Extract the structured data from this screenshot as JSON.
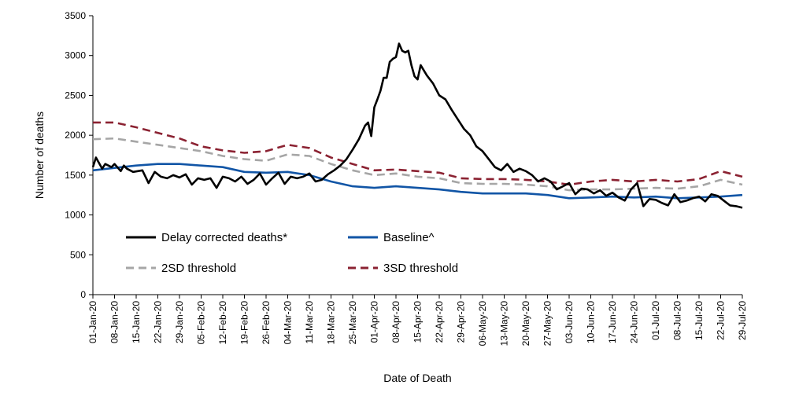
{
  "chart_data": {
    "type": "line",
    "title": "",
    "xlabel": "Date of Death",
    "ylabel": "Number of deaths",
    "ylim": [
      0,
      3500
    ],
    "yticks": [
      0,
      500,
      1000,
      1500,
      2000,
      2500,
      3000,
      3500
    ],
    "xlim": [
      "2020-01-01",
      "2020-07-29"
    ],
    "x_tick_dates": [
      "2020-01-01",
      "2020-01-08",
      "2020-01-15",
      "2020-01-22",
      "2020-01-29",
      "2020-02-05",
      "2020-02-12",
      "2020-02-19",
      "2020-02-26",
      "2020-03-04",
      "2020-03-11",
      "2020-03-18",
      "2020-03-25",
      "2020-04-01",
      "2020-04-08",
      "2020-04-15",
      "2020-04-22",
      "2020-04-29",
      "2020-05-06",
      "2020-05-13",
      "2020-05-20",
      "2020-05-27",
      "2020-06-03",
      "2020-06-10",
      "2020-06-17",
      "2020-06-24",
      "2020-07-01",
      "2020-07-08",
      "2020-07-15",
      "2020-07-22",
      "2020-07-29"
    ],
    "x_tick_labels": [
      "01-Jan-20",
      "08-Jan-20",
      "15-Jan-20",
      "22-Jan-20",
      "29-Jan-20",
      "05-Feb-20",
      "12-Feb-20",
      "19-Feb-20",
      "26-Feb-20",
      "04-Mar-20",
      "11-Mar-20",
      "18-Mar-20",
      "25-Mar-20",
      "01-Apr-20",
      "08-Apr-20",
      "15-Apr-20",
      "22-Apr-20",
      "29-Apr-20",
      "06-May-20",
      "13-May-20",
      "20-May-20",
      "27-May-20",
      "03-Jun-20",
      "10-Jun-20",
      "17-Jun-20",
      "24-Jun-20",
      "01-Jul-20",
      "08-Jul-20",
      "15-Jul-20",
      "22-Jul-20",
      "29-Jul-20"
    ],
    "grid": false,
    "legend_placement": "bottom-left inside plot, two columns",
    "series": [
      {
        "name": "Delay corrected deaths*",
        "color": "#000000",
        "style": "solid",
        "x": [
          "2020-01-01",
          "2020-01-02",
          "2020-01-04",
          "2020-01-05",
          "2020-01-07",
          "2020-01-08",
          "2020-01-10",
          "2020-01-11",
          "2020-01-12",
          "2020-01-14",
          "2020-01-17",
          "2020-01-19",
          "2020-01-21",
          "2020-01-23",
          "2020-01-25",
          "2020-01-27",
          "2020-01-29",
          "2020-01-31",
          "2020-02-02",
          "2020-02-04",
          "2020-02-06",
          "2020-02-08",
          "2020-02-10",
          "2020-02-12",
          "2020-02-14",
          "2020-02-16",
          "2020-02-18",
          "2020-02-20",
          "2020-02-22",
          "2020-02-24",
          "2020-02-26",
          "2020-02-28",
          "2020-03-01",
          "2020-03-03",
          "2020-03-05",
          "2020-03-07",
          "2020-03-09",
          "2020-03-11",
          "2020-03-13",
          "2020-03-15",
          "2020-03-17",
          "2020-03-19",
          "2020-03-21",
          "2020-03-23",
          "2020-03-25",
          "2020-03-27",
          "2020-03-29",
          "2020-03-30",
          "2020-03-31",
          "2020-04-01",
          "2020-04-02",
          "2020-04-03",
          "2020-04-04",
          "2020-04-05",
          "2020-04-06",
          "2020-04-07",
          "2020-04-08",
          "2020-04-09",
          "2020-04-10",
          "2020-04-11",
          "2020-04-12",
          "2020-04-13",
          "2020-04-14",
          "2020-04-15",
          "2020-04-16",
          "2020-04-18",
          "2020-04-20",
          "2020-04-22",
          "2020-04-24",
          "2020-04-26",
          "2020-04-28",
          "2020-04-30",
          "2020-05-02",
          "2020-05-04",
          "2020-05-06",
          "2020-05-08",
          "2020-05-10",
          "2020-05-12",
          "2020-05-14",
          "2020-05-16",
          "2020-05-18",
          "2020-05-20",
          "2020-05-22",
          "2020-05-24",
          "2020-05-26",
          "2020-05-28",
          "2020-05-30",
          "2020-06-01",
          "2020-06-03",
          "2020-06-05",
          "2020-06-07",
          "2020-06-09",
          "2020-06-11",
          "2020-06-13",
          "2020-06-15",
          "2020-06-17",
          "2020-06-19",
          "2020-06-21",
          "2020-06-23",
          "2020-06-25",
          "2020-06-27",
          "2020-06-29",
          "2020-07-01",
          "2020-07-03",
          "2020-07-05",
          "2020-07-07",
          "2020-07-09",
          "2020-07-11",
          "2020-07-13",
          "2020-07-15",
          "2020-07-17",
          "2020-07-19",
          "2020-07-21",
          "2020-07-23",
          "2020-07-25",
          "2020-07-27",
          "2020-07-29"
        ],
        "y": [
          1600,
          1720,
          1580,
          1640,
          1600,
          1640,
          1550,
          1620,
          1580,
          1540,
          1560,
          1400,
          1540,
          1480,
          1460,
          1500,
          1470,
          1510,
          1380,
          1460,
          1440,
          1460,
          1340,
          1480,
          1460,
          1420,
          1480,
          1390,
          1440,
          1520,
          1380,
          1460,
          1530,
          1390,
          1480,
          1460,
          1480,
          1520,
          1420,
          1440,
          1510,
          1560,
          1620,
          1700,
          1820,
          1950,
          2120,
          2160,
          1990,
          2350,
          2450,
          2560,
          2720,
          2720,
          2920,
          2960,
          2980,
          3150,
          3060,
          3040,
          3060,
          2880,
          2740,
          2700,
          2880,
          2750,
          2650,
          2500,
          2450,
          2320,
          2200,
          2080,
          2000,
          1860,
          1800,
          1700,
          1600,
          1560,
          1640,
          1540,
          1580,
          1550,
          1500,
          1420,
          1460,
          1420,
          1320,
          1360,
          1400,
          1260,
          1330,
          1320,
          1270,
          1310,
          1240,
          1280,
          1220,
          1180,
          1320,
          1400,
          1110,
          1200,
          1190,
          1150,
          1120,
          1260,
          1160,
          1180,
          1210,
          1230,
          1170,
          1260,
          1240,
          1180,
          1120,
          1110,
          1090
        ]
      },
      {
        "name": "Baseline^",
        "color": "#1155a6",
        "style": "solid",
        "x": [
          "2020-01-01",
          "2020-01-08",
          "2020-01-15",
          "2020-01-22",
          "2020-01-29",
          "2020-02-05",
          "2020-02-12",
          "2020-02-19",
          "2020-02-26",
          "2020-03-04",
          "2020-03-11",
          "2020-03-18",
          "2020-03-25",
          "2020-04-01",
          "2020-04-08",
          "2020-04-15",
          "2020-04-22",
          "2020-04-29",
          "2020-05-06",
          "2020-05-13",
          "2020-05-20",
          "2020-05-27",
          "2020-06-03",
          "2020-06-10",
          "2020-06-17",
          "2020-06-24",
          "2020-07-01",
          "2020-07-08",
          "2020-07-15",
          "2020-07-22",
          "2020-07-29"
        ],
        "y": [
          1560,
          1590,
          1620,
          1640,
          1640,
          1620,
          1600,
          1540,
          1530,
          1540,
          1500,
          1420,
          1360,
          1340,
          1360,
          1340,
          1320,
          1290,
          1270,
          1270,
          1270,
          1250,
          1210,
          1220,
          1230,
          1220,
          1230,
          1210,
          1220,
          1230,
          1250
        ]
      },
      {
        "name": "2SD threshold",
        "color": "#a6a6a6",
        "style": "dashed",
        "x": [
          "2020-01-01",
          "2020-01-08",
          "2020-01-15",
          "2020-01-22",
          "2020-01-29",
          "2020-02-05",
          "2020-02-12",
          "2020-02-19",
          "2020-02-26",
          "2020-03-04",
          "2020-03-11",
          "2020-03-18",
          "2020-03-25",
          "2020-04-01",
          "2020-04-08",
          "2020-04-15",
          "2020-04-22",
          "2020-04-29",
          "2020-05-06",
          "2020-05-13",
          "2020-05-20",
          "2020-05-27",
          "2020-06-03",
          "2020-06-10",
          "2020-06-17",
          "2020-06-24",
          "2020-07-01",
          "2020-07-08",
          "2020-07-15",
          "2020-07-22",
          "2020-07-29"
        ],
        "y": [
          1950,
          1960,
          1920,
          1880,
          1840,
          1800,
          1740,
          1700,
          1680,
          1760,
          1740,
          1640,
          1560,
          1500,
          1520,
          1480,
          1460,
          1400,
          1390,
          1390,
          1380,
          1360,
          1310,
          1320,
          1320,
          1330,
          1340,
          1330,
          1360,
          1440,
          1380
        ]
      },
      {
        "name": "3SD threshold",
        "color": "#8b2232",
        "style": "dashed",
        "x": [
          "2020-01-01",
          "2020-01-08",
          "2020-01-15",
          "2020-01-22",
          "2020-01-29",
          "2020-02-05",
          "2020-02-12",
          "2020-02-19",
          "2020-02-26",
          "2020-03-04",
          "2020-03-11",
          "2020-03-18",
          "2020-03-25",
          "2020-04-01",
          "2020-04-08",
          "2020-04-15",
          "2020-04-22",
          "2020-04-29",
          "2020-05-06",
          "2020-05-13",
          "2020-05-20",
          "2020-05-27",
          "2020-06-03",
          "2020-06-10",
          "2020-06-17",
          "2020-06-24",
          "2020-07-01",
          "2020-07-08",
          "2020-07-15",
          "2020-07-22",
          "2020-07-29"
        ],
        "y": [
          2160,
          2160,
          2100,
          2030,
          1960,
          1860,
          1810,
          1780,
          1800,
          1880,
          1840,
          1720,
          1640,
          1560,
          1570,
          1550,
          1530,
          1460,
          1450,
          1450,
          1440,
          1420,
          1380,
          1420,
          1440,
          1420,
          1440,
          1420,
          1450,
          1550,
          1480
        ]
      }
    ]
  }
}
